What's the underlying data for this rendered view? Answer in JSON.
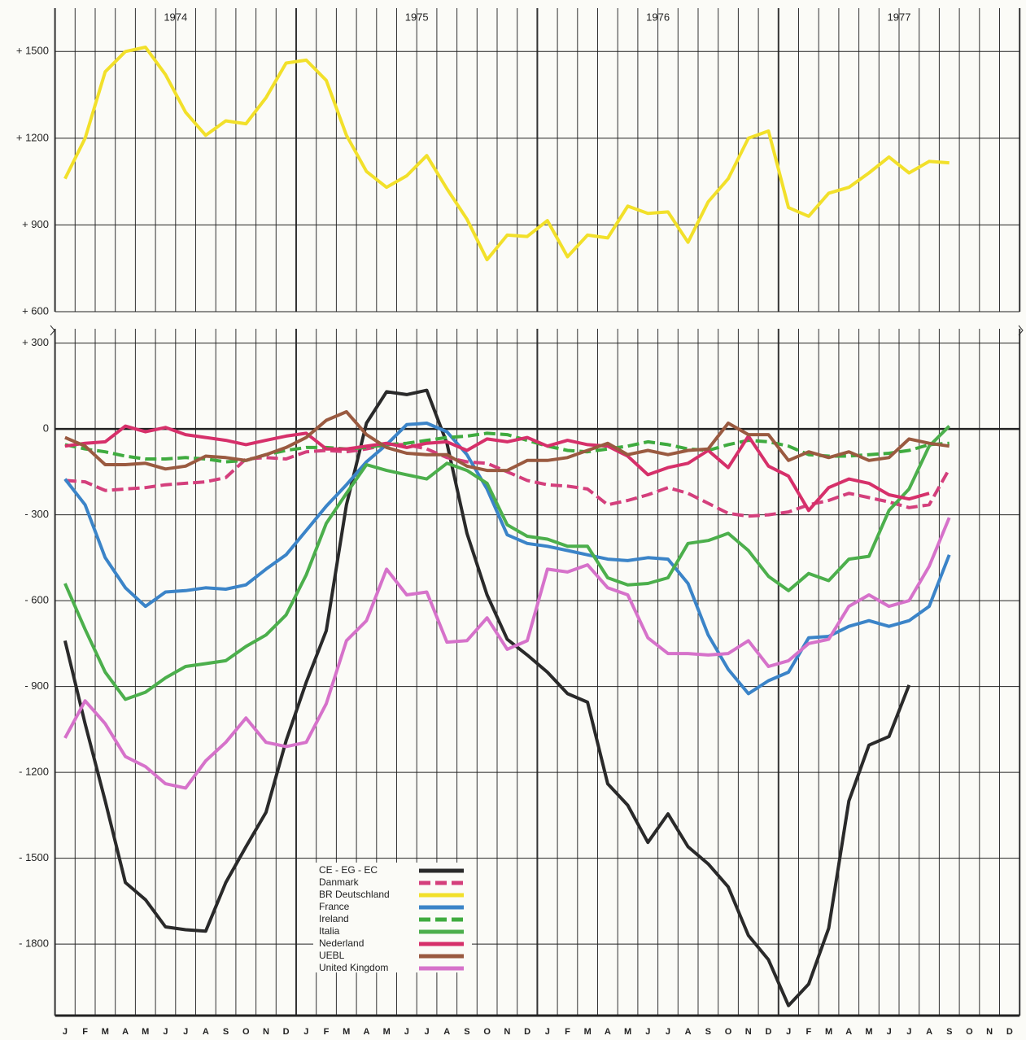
{
  "chart_data": {
    "type": "line",
    "categories": [
      "J",
      "F",
      "M",
      "A",
      "M",
      "J",
      "J",
      "A",
      "S",
      "O",
      "N",
      "D",
      "J",
      "F",
      "M",
      "A",
      "M",
      "J",
      "J",
      "A",
      "S",
      "O",
      "N",
      "D",
      "J",
      "F",
      "M",
      "A",
      "M",
      "J",
      "J",
      "A",
      "S",
      "O",
      "N",
      "D",
      "J",
      "F",
      "M",
      "A",
      "M",
      "J",
      "J",
      "A",
      "S",
      "O",
      "N",
      "D"
    ],
    "years": [
      "1974",
      "1975",
      "1976",
      "1977"
    ],
    "ylim": [
      -2050,
      350
    ],
    "yticks": [
      {
        "value": 300,
        "label": "+ 300"
      },
      0,
      {
        "value": -300,
        "label": "- 300"
      },
      {
        "value": -600,
        "label": "- 600"
      },
      {
        "value": -900,
        "label": "- 900"
      },
      {
        "value": -1200,
        "label": "- 1200"
      },
      {
        "value": -1500,
        "label": "- 1500"
      },
      {
        "value": -1800,
        "label": "- 1800"
      }
    ],
    "y2lim": [
      600,
      1650
    ],
    "y2ticks": [
      {
        "value": 600,
        "label": "+ 600"
      },
      {
        "value": 900,
        "label": "+ 900"
      },
      {
        "value": 1200,
        "label": "+ 1200"
      },
      {
        "value": 1500,
        "label": "+ 1500"
      }
    ],
    "grid": true,
    "series": [
      {
        "name": "CE - EG - EC",
        "color": "#2a2a2a",
        "linestyle": "solid",
        "values": [
          -740,
          -1030,
          -1300,
          -1585,
          -1645,
          -1740,
          -1750,
          -1755,
          -1585,
          -1460,
          -1340,
          -1090,
          -885,
          -705,
          -265,
          20,
          130,
          120,
          135,
          -50,
          -365,
          -580,
          -735,
          -790,
          -850,
          -925,
          -955,
          -1240,
          -1315,
          -1445,
          -1345,
          -1460,
          -1520,
          -1600,
          -1770,
          -1855,
          -2015,
          -1940,
          -1745,
          -1300,
          -1105,
          -1075,
          -895,
          null,
          null,
          null,
          null,
          null
        ]
      },
      {
        "name": "Danmark",
        "color": "#d43f7c",
        "linestyle": "dashed",
        "values": [
          -180,
          -185,
          -215,
          -210,
          -205,
          -195,
          -190,
          -185,
          -170,
          -105,
          -100,
          -105,
          -80,
          -75,
          -80,
          -70,
          -55,
          -55,
          -70,
          -100,
          -115,
          -120,
          -150,
          -180,
          -195,
          -200,
          -210,
          -265,
          -250,
          -230,
          -205,
          -225,
          -260,
          -295,
          -305,
          -300,
          -290,
          -265,
          -250,
          -225,
          -240,
          -255,
          -275,
          -265,
          -140,
          null,
          null,
          null
        ]
      },
      {
        "name": "BR Deutschland",
        "color": "#f2e02a",
        "linestyle": "solid",
        "axis": "y2",
        "values": [
          1060,
          1200,
          1430,
          1500,
          1515,
          1420,
          1290,
          1210,
          1260,
          1250,
          1340,
          1460,
          1470,
          1400,
          1210,
          1085,
          1030,
          1070,
          1140,
          1025,
          920,
          780,
          865,
          860,
          915,
          790,
          865,
          855,
          965,
          940,
          945,
          840,
          980,
          1060,
          1200,
          1225,
          960,
          930,
          1010,
          1030,
          1080,
          1135,
          1080,
          1120,
          1115,
          null,
          null,
          null
        ]
      },
      {
        "name": "France",
        "color": "#3b84c8",
        "linestyle": "solid",
        "values": [
          -175,
          -265,
          -450,
          -555,
          -620,
          -570,
          -565,
          -555,
          -560,
          -545,
          -490,
          -440,
          -355,
          -270,
          -195,
          -115,
          -55,
          15,
          20,
          -10,
          -90,
          -210,
          -370,
          -400,
          -410,
          -425,
          -440,
          -455,
          -460,
          -450,
          -455,
          -540,
          -720,
          -840,
          -925,
          -880,
          -850,
          -730,
          -725,
          -690,
          -670,
          -690,
          -670,
          -620,
          -440,
          null,
          null,
          null
        ]
      },
      {
        "name": "Ireland",
        "color": "#3fab3f",
        "linestyle": "dashed",
        "values": [
          -55,
          -70,
          -80,
          -95,
          -105,
          -105,
          -100,
          -105,
          -115,
          -110,
          -90,
          -75,
          -65,
          -65,
          -70,
          -65,
          -55,
          -50,
          -40,
          -30,
          -25,
          -15,
          -20,
          -40,
          -60,
          -75,
          -80,
          -70,
          -60,
          -45,
          -55,
          -70,
          -75,
          -55,
          -40,
          -45,
          -60,
          -90,
          -95,
          -95,
          -90,
          -85,
          -75,
          -55,
          -50,
          null,
          null,
          null
        ]
      },
      {
        "name": "Italia",
        "color": "#4caf4c",
        "linestyle": "solid",
        "values": [
          -540,
          -700,
          -850,
          -945,
          -920,
          -870,
          -830,
          -820,
          -810,
          -760,
          -720,
          -650,
          -510,
          -330,
          -225,
          -125,
          -145,
          -160,
          -175,
          -120,
          -145,
          -190,
          -335,
          -375,
          -385,
          -410,
          -410,
          -520,
          -545,
          -540,
          -520,
          -400,
          -390,
          -365,
          -425,
          -515,
          -565,
          -505,
          -530,
          -455,
          -445,
          -285,
          -210,
          -60,
          10,
          null,
          null,
          null
        ]
      },
      {
        "name": "Nederland",
        "color": "#d6306a",
        "linestyle": "solid",
        "values": [
          -60,
          -50,
          -45,
          10,
          -10,
          5,
          -20,
          -30,
          -40,
          -55,
          -40,
          -25,
          -15,
          -70,
          -70,
          -60,
          -50,
          -65,
          -50,
          -45,
          -75,
          -35,
          -45,
          -30,
          -60,
          -40,
          -55,
          -60,
          -95,
          -160,
          -135,
          -120,
          -75,
          -135,
          -25,
          -130,
          -165,
          -285,
          -205,
          -175,
          -190,
          -230,
          -245,
          -225,
          null,
          null,
          null,
          null
        ]
      },
      {
        "name": "UEBL",
        "color": "#9a5a40",
        "linestyle": "solid",
        "values": [
          -30,
          -60,
          -125,
          -125,
          -120,
          -140,
          -130,
          -95,
          -100,
          -110,
          -90,
          -65,
          -30,
          30,
          60,
          -20,
          -65,
          -85,
          -90,
          -90,
          -130,
          -145,
          -145,
          -110,
          -110,
          -100,
          -75,
          -50,
          -90,
          -75,
          -90,
          -75,
          -70,
          20,
          -20,
          -20,
          -110,
          -80,
          -100,
          -80,
          -110,
          -100,
          -35,
          -50,
          -60,
          null,
          null,
          null
        ]
      },
      {
        "name": "United Kingdom",
        "color": "#d672ca",
        "linestyle": "solid",
        "values": [
          -1080,
          -950,
          -1030,
          -1145,
          -1180,
          -1240,
          -1255,
          -1160,
          -1095,
          -1010,
          -1095,
          -1110,
          -1095,
          -960,
          -740,
          -670,
          -490,
          -580,
          -570,
          -745,
          -740,
          -660,
          -770,
          -740,
          -490,
          -500,
          -475,
          -555,
          -580,
          -730,
          -785,
          -785,
          -790,
          -785,
          -740,
          -830,
          -810,
          -750,
          -735,
          -620,
          -580,
          -620,
          -600,
          -480,
          -310,
          null,
          null,
          null
        ]
      }
    ]
  }
}
